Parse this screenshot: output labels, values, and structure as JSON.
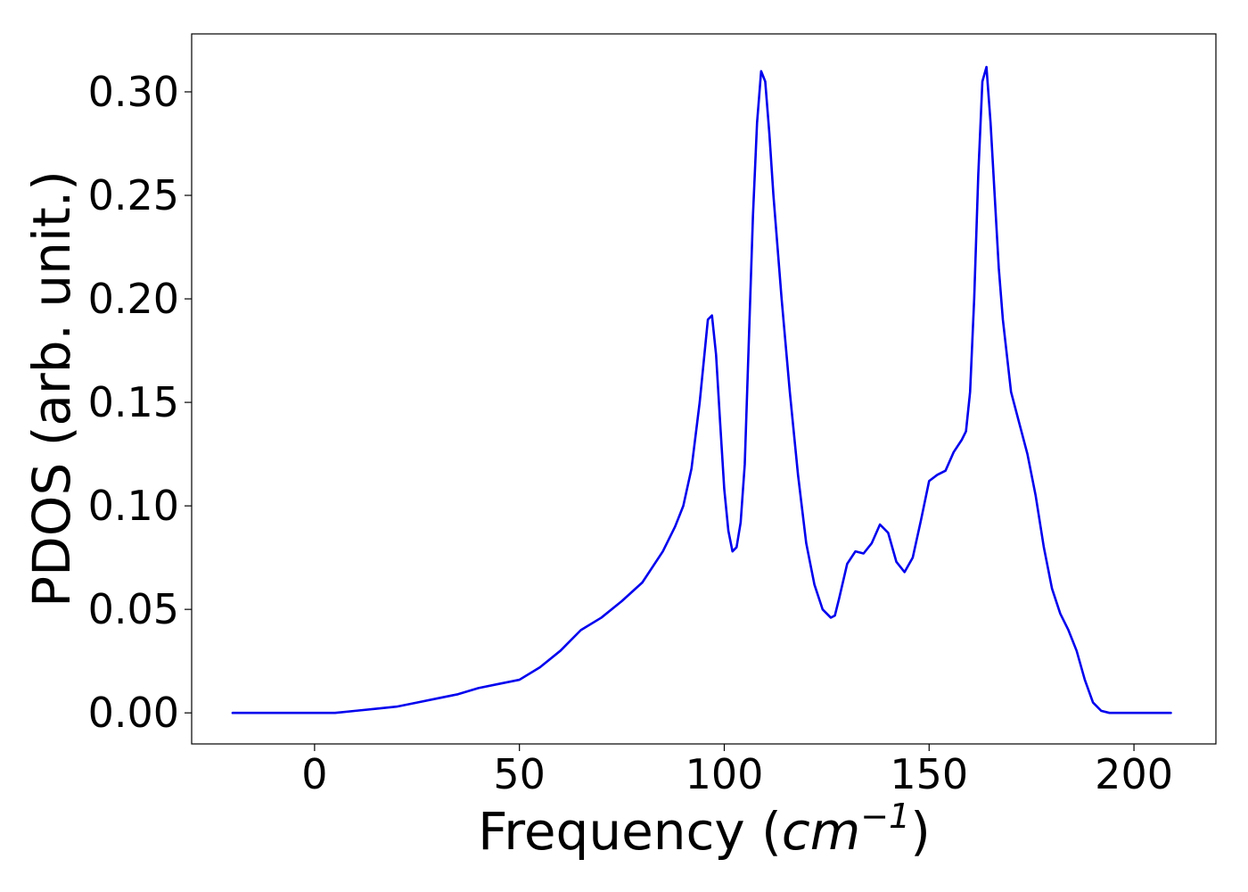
{
  "chart_data": {
    "type": "line",
    "title": "",
    "xlabel": "Frequency",
    "xlabel_unit_base": "cm",
    "xlabel_unit_exp": "−1",
    "ylabel": "PDOS (arb. unit.)",
    "xlim": [
      -30,
      220
    ],
    "ylim": [
      -0.015,
      0.328
    ],
    "xticks": [
      0,
      50,
      100,
      150,
      200
    ],
    "xtick_labels": [
      "0",
      "50",
      "100",
      "150",
      "200"
    ],
    "yticks": [
      0.0,
      0.05,
      0.1,
      0.15,
      0.2,
      0.25,
      0.3
    ],
    "ytick_labels": [
      "0.00",
      "0.05",
      "0.10",
      "0.15",
      "0.20",
      "0.25",
      "0.30"
    ],
    "grid": false,
    "legend": "none",
    "series": [
      {
        "color": "#0000ee",
        "x": [
          -20,
          0,
          5,
          10,
          15,
          20,
          25,
          30,
          35,
          40,
          45,
          50,
          55,
          60,
          65,
          70,
          75,
          80,
          85,
          88,
          90,
          92,
          94,
          96,
          97,
          98,
          99,
          100,
          101,
          102,
          103,
          104,
          105,
          106,
          107,
          108,
          109,
          110,
          111,
          112,
          114,
          116,
          118,
          120,
          122,
          124,
          126,
          127,
          128,
          130,
          132,
          134,
          136,
          138,
          140,
          142,
          144,
          146,
          148,
          150,
          152,
          154,
          156,
          158,
          159,
          160,
          161,
          162,
          163,
          164,
          165,
          166,
          167,
          168,
          170,
          172,
          174,
          176,
          178,
          180,
          182,
          184,
          186,
          188,
          190,
          192,
          194,
          196,
          200,
          209
        ],
        "y": [
          0.0,
          0.0,
          0.0,
          0.001,
          0.002,
          0.003,
          0.005,
          0.007,
          0.009,
          0.012,
          0.014,
          0.016,
          0.022,
          0.03,
          0.04,
          0.046,
          0.054,
          0.063,
          0.078,
          0.09,
          0.1,
          0.118,
          0.15,
          0.19,
          0.192,
          0.173,
          0.14,
          0.108,
          0.088,
          0.078,
          0.08,
          0.092,
          0.12,
          0.18,
          0.24,
          0.285,
          0.31,
          0.305,
          0.28,
          0.25,
          0.2,
          0.155,
          0.115,
          0.082,
          0.062,
          0.05,
          0.046,
          0.047,
          0.055,
          0.072,
          0.078,
          0.077,
          0.082,
          0.091,
          0.087,
          0.073,
          0.068,
          0.075,
          0.093,
          0.112,
          0.115,
          0.117,
          0.126,
          0.132,
          0.136,
          0.155,
          0.2,
          0.26,
          0.305,
          0.312,
          0.285,
          0.25,
          0.215,
          0.19,
          0.155,
          0.14,
          0.125,
          0.105,
          0.08,
          0.06,
          0.048,
          0.04,
          0.03,
          0.016,
          0.005,
          0.001,
          0.0,
          0.0,
          0.0,
          0.0
        ]
      }
    ]
  }
}
